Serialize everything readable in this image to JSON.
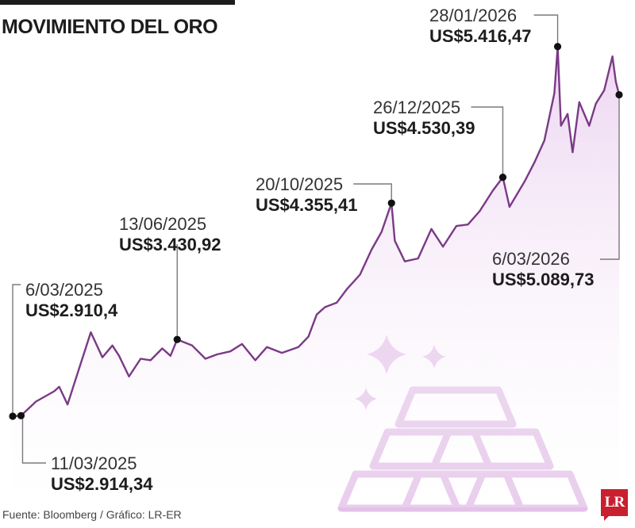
{
  "title": "MOVIMIENTO DEL ORO",
  "source": "Fuente: Bloomberg / Gráfico: LR-ER",
  "logo_text": "LR",
  "colors": {
    "line": "#7a3a86",
    "fill": "#f3e3f5",
    "annotation": "#7a7a7a",
    "icon": "#e6c6ea"
  },
  "chart_data": {
    "type": "area",
    "title": "MOVIMIENTO DEL ORO",
    "xlabel": "",
    "ylabel": "",
    "x_range": [
      "2025-03-06",
      "2026-03-06"
    ],
    "ylim": [
      2400,
      5700
    ],
    "grid": false,
    "series": [
      {
        "points": [
          [
            "2025-03-06",
            2910.4
          ],
          [
            "2025-03-11",
            2914.34
          ],
          [
            "2025-03-20",
            3010
          ],
          [
            "2025-03-31",
            3080
          ],
          [
            "2025-04-03",
            3110
          ],
          [
            "2025-04-08",
            2990
          ],
          [
            "2025-04-14",
            3200
          ],
          [
            "2025-04-22",
            3480
          ],
          [
            "2025-04-29",
            3310
          ],
          [
            "2025-05-05",
            3390
          ],
          [
            "2025-05-09",
            3320
          ],
          [
            "2025-05-15",
            3180
          ],
          [
            "2025-05-22",
            3300
          ],
          [
            "2025-05-28",
            3290
          ],
          [
            "2025-06-04",
            3370
          ],
          [
            "2025-06-09",
            3320
          ],
          [
            "2025-06-13",
            3430.92
          ],
          [
            "2025-06-22",
            3390
          ],
          [
            "2025-06-30",
            3300
          ],
          [
            "2025-07-07",
            3330
          ],
          [
            "2025-07-15",
            3350
          ],
          [
            "2025-07-22",
            3400
          ],
          [
            "2025-07-30",
            3290
          ],
          [
            "2025-08-06",
            3380
          ],
          [
            "2025-08-15",
            3340
          ],
          [
            "2025-08-25",
            3380
          ],
          [
            "2025-08-31",
            3450
          ],
          [
            "2025-09-05",
            3600
          ],
          [
            "2025-09-10",
            3650
          ],
          [
            "2025-09-17",
            3680
          ],
          [
            "2025-09-23",
            3770
          ],
          [
            "2025-10-01",
            3870
          ],
          [
            "2025-10-08",
            4040
          ],
          [
            "2025-10-14",
            4160
          ],
          [
            "2025-10-20",
            4355.41
          ],
          [
            "2025-10-22",
            4100
          ],
          [
            "2025-10-28",
            3960
          ],
          [
            "2025-11-05",
            3980
          ],
          [
            "2025-11-13",
            4180
          ],
          [
            "2025-11-20",
            4060
          ],
          [
            "2025-11-28",
            4200
          ],
          [
            "2025-12-05",
            4210
          ],
          [
            "2025-12-12",
            4300
          ],
          [
            "2025-12-20",
            4440
          ],
          [
            "2025-12-26",
            4530.39
          ],
          [
            "2025-12-30",
            4330
          ],
          [
            "2026-01-08",
            4500
          ],
          [
            "2026-01-14",
            4630
          ],
          [
            "2026-01-20",
            4780
          ],
          [
            "2026-01-26",
            5100
          ],
          [
            "2026-01-28",
            5416.47
          ],
          [
            "2026-01-30",
            4880
          ],
          [
            "2026-02-03",
            4960
          ],
          [
            "2026-02-06",
            4700
          ],
          [
            "2026-02-10",
            5040
          ],
          [
            "2026-02-16",
            4880
          ],
          [
            "2026-02-20",
            5030
          ],
          [
            "2026-02-25",
            5120
          ],
          [
            "2026-03-02",
            5350
          ],
          [
            "2026-03-04",
            5180
          ],
          [
            "2026-03-06",
            5089.73
          ]
        ]
      }
    ],
    "annotations": [
      {
        "date": "6/03/2025",
        "price": "US$2.910,4",
        "x": "2025-03-06",
        "y": 2910.4
      },
      {
        "date": "11/03/2025",
        "price": "US$2.914,34",
        "x": "2025-03-11",
        "y": 2914.34
      },
      {
        "date": "13/06/2025",
        "price": "US$3.430,92",
        "x": "2025-06-13",
        "y": 3430.92
      },
      {
        "date": "20/10/2025",
        "price": "US$4.355,41",
        "x": "2025-10-20",
        "y": 4355.41
      },
      {
        "date": "26/12/2025",
        "price": "US$4.530,39",
        "x": "2025-12-26",
        "y": 4530.39
      },
      {
        "date": "28/01/2026",
        "price": "US$5.416,47",
        "x": "2026-01-28",
        "y": 5416.47
      },
      {
        "date": "6/03/2026",
        "price": "US$5.089,73",
        "x": "2026-03-06",
        "y": 5089.73
      }
    ]
  }
}
